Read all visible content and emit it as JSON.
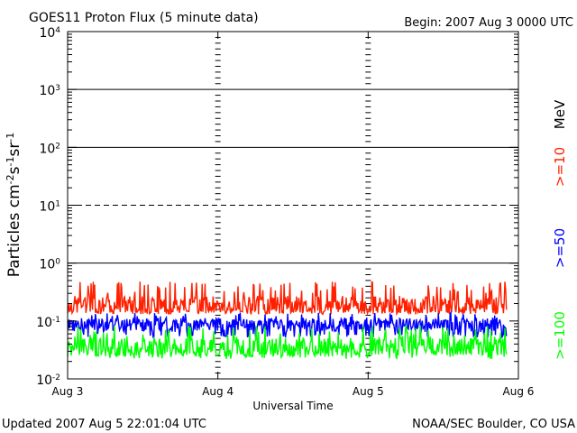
{
  "chart_data": {
    "type": "line",
    "title": "GOES11 Proton Flux (5 minute data)",
    "begin_label": "Begin: 2007 Aug 3 0000 UTC",
    "ylabel": "Particles cm-2s-1sr-1",
    "xlabel": "Universal Time",
    "xticks": [
      "Aug 3",
      "Aug 4",
      "Aug 5",
      "Aug 6"
    ],
    "xlim_days": [
      0,
      3
    ],
    "data_end_days": 2.92,
    "y_scale": "log",
    "ylim": [
      0.01,
      10000
    ],
    "yticks": [
      {
        "base": "10",
        "exp": "4"
      },
      {
        "base": "10",
        "exp": "3"
      },
      {
        "base": "10",
        "exp": "2"
      },
      {
        "base": "10",
        "exp": "1"
      },
      {
        "base": "10",
        "exp": "0"
      },
      {
        "base": "10",
        "exp": "-1"
      },
      {
        "base": "10",
        "exp": "-2"
      }
    ],
    "threshold_lines": [
      {
        "value": 1000,
        "style": "solid"
      },
      {
        "value": 100,
        "style": "solid"
      },
      {
        "value": 10,
        "style": "dashed"
      },
      {
        "value": 1,
        "style": "solid"
      }
    ],
    "unit_label": "MeV",
    "series": [
      {
        "name": ">=10",
        "color": "#ff2000",
        "min": 0.13,
        "max": 0.48,
        "typical": 0.19
      },
      {
        "name": ">=50",
        "color": "#0000ff",
        "min": 0.052,
        "max": 0.14,
        "typical": 0.085
      },
      {
        "name": ">=100",
        "color": "#00ff00",
        "min": 0.022,
        "max": 0.085,
        "typical": 0.035
      }
    ]
  },
  "footer": {
    "updated": "Updated 2007 Aug  5 22:01:04 UTC",
    "source": "NOAA/SEC Boulder, CO USA"
  }
}
